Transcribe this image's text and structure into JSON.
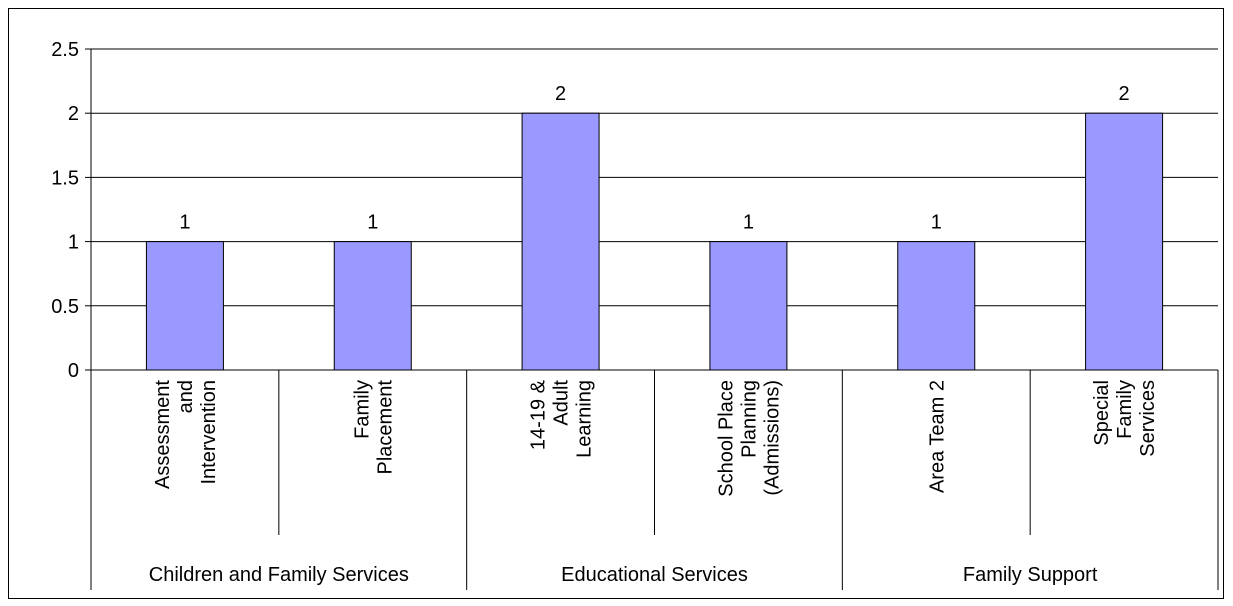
{
  "chart_data": {
    "type": "bar",
    "categories": [
      {
        "lines": [
          "Assessment",
          "and",
          "Intervention"
        ],
        "group": "Children and Family Services"
      },
      {
        "lines": [
          "Family",
          "Placement"
        ],
        "group": "Children and Family Services"
      },
      {
        "lines": [
          "14-19 &",
          "Adult",
          "Learning"
        ],
        "group": "Educational Services"
      },
      {
        "lines": [
          "School Place",
          "Planning",
          "(Admissions)"
        ],
        "group": "Educational Services"
      },
      {
        "lines": [
          "Area Team 2"
        ],
        "group": "Family Support"
      },
      {
        "lines": [
          "Special",
          "Family",
          "Services"
        ],
        "group": "Family Support"
      }
    ],
    "groups": [
      "Children and Family Services",
      "Educational Services",
      "Family Support"
    ],
    "values": [
      1,
      1,
      2,
      1,
      1,
      2
    ],
    "data_labels": [
      "1",
      "1",
      "2",
      "1",
      "1",
      "2"
    ],
    "yticks": [
      "0",
      "0.5",
      "1",
      "1.5",
      "2",
      "2.5"
    ],
    "ylim": [
      0,
      2.5
    ],
    "grid": true,
    "bar_color": "#9999ff",
    "title": "",
    "xlabel": "",
    "ylabel": ""
  }
}
